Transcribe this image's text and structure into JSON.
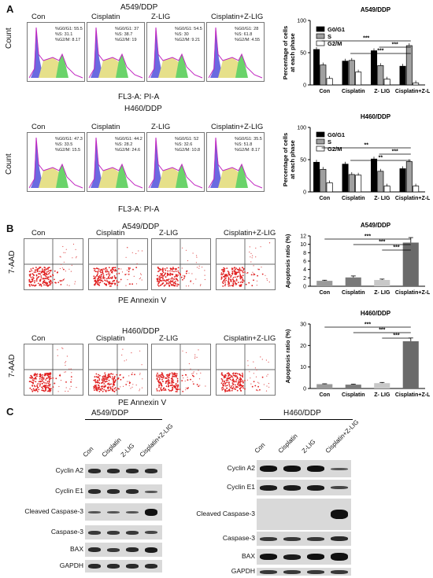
{
  "panels": {
    "a": "A",
    "b": "B",
    "c": "C"
  },
  "flow": {
    "a549_title": "A549/DDP",
    "h460_title": "H460/DDP",
    "count_label": "Count",
    "x_label": "FL3-A: PI-A",
    "groups": [
      "Con",
      "Cisplatin",
      "Z-LIG",
      "Cisplatin+Z-LIG"
    ],
    "a549_stats": [
      [
        "%G0/G1: 55.5",
        "%S: 31.1",
        "%G2/M: 8.17"
      ],
      [
        "%G0/G1: 37",
        "%S: 38.7",
        "%G2/M: 19"
      ],
      [
        "%G0/G1: 54.5",
        "%S: 30",
        "%G2/M: 9.21"
      ],
      [
        "%G0/G1: 28",
        "%S: 61.8",
        "%G2/M: 4.55"
      ]
    ],
    "h460_stats": [
      [
        "%G0/G1: 47.3",
        "%S: 33.5",
        "%G2/M: 15.5"
      ],
      [
        "%G0/G1: 44.2",
        "%S: 28.2",
        "%G2/M: 24.6"
      ],
      [
        "%G0/G1: 52",
        "%S: 32.6",
        "%G2/M: 10.8"
      ],
      [
        "%G0/G1: 35.5",
        "%S: 51.8",
        "%G2/M: 8.17"
      ]
    ]
  },
  "apoptosis": {
    "a549_title": "A549/DDP",
    "h460_title": "H460/DDP",
    "y_label": "7-AAD",
    "x_label": "PE Annexin V",
    "groups": [
      "Con",
      "Cisplatin",
      "Z-LIG",
      "Cisplatin+Z-LIG"
    ]
  },
  "chart_data": [
    {
      "type": "bar",
      "title": "A549/DDP",
      "categories": [
        "Con",
        "Cisplatin",
        "Z- LIG",
        "Cisplatin+Z-LIG"
      ],
      "ylabel": "Percentage of cells at each phase",
      "ylim": [
        0,
        100
      ],
      "yticks": [
        0,
        50,
        100
      ],
      "series": [
        {
          "name": "G0/G1",
          "values": [
            55,
            37,
            53,
            29
          ],
          "color": "#000000"
        },
        {
          "name": "S",
          "values": [
            31,
            38,
            30,
            61
          ],
          "color": "#a0a0a0"
        },
        {
          "name": "G2/M",
          "values": [
            10,
            20,
            9,
            3
          ],
          "color": "#ffffff"
        }
      ],
      "significance": [
        "***",
        "***",
        "***"
      ]
    },
    {
      "type": "bar",
      "title": "H460/DDP",
      "categories": [
        "Con",
        "Cisplatin",
        "Z- LIG",
        "Cisplatin+Z-LIG"
      ],
      "ylabel": "Percentage of cells at each phase",
      "ylim": [
        0,
        100
      ],
      "yticks": [
        0,
        50,
        100
      ],
      "series": [
        {
          "name": "G0/G1",
          "values": [
            46,
            43,
            51,
            36
          ],
          "color": "#000000"
        },
        {
          "name": "S",
          "values": [
            35,
            27,
            32,
            47
          ],
          "color": "#a0a0a0"
        },
        {
          "name": "G2/M",
          "values": [
            14,
            26,
            9,
            9
          ],
          "color": "#ffffff"
        }
      ],
      "significance": [
        "**",
        "***",
        "**"
      ]
    },
    {
      "type": "bar",
      "title": "A549/DDP",
      "categories": [
        "Con",
        "Cisplatin",
        "Z- LIG",
        "Cisplatin+Z-LIG"
      ],
      "ylabel": "Apoptosis ratio (%)",
      "ylim": [
        0,
        12
      ],
      "yticks": [
        0,
        2,
        4,
        6,
        8,
        10,
        12
      ],
      "values": [
        1.3,
        2.1,
        1.5,
        10.4
      ],
      "errors": [
        0.15,
        0.35,
        0.2,
        1.2
      ],
      "colors": [
        "#9a9a9a",
        "#7a7a7a",
        "#c8c8c8",
        "#6a6a6a"
      ],
      "significance": [
        "***",
        "***",
        "***"
      ]
    },
    {
      "type": "bar",
      "title": "H460/DDP",
      "categories": [
        "Con",
        "Cisplatin",
        "Z- LIG",
        "Cisplatin+Z-LIG"
      ],
      "ylabel": "Apoptosis ratio (%)",
      "ylim": [
        0,
        30
      ],
      "yticks": [
        0,
        10,
        20,
        30
      ],
      "values": [
        2.0,
        1.8,
        2.5,
        22.0
      ],
      "errors": [
        0.2,
        0.2,
        0.3,
        1.5
      ],
      "colors": [
        "#9a9a9a",
        "#7a7a7a",
        "#c8c8c8",
        "#6a6a6a"
      ],
      "significance": [
        "***",
        "***",
        "***"
      ]
    }
  ],
  "western": {
    "a549_title": "A549/DDP",
    "h460_title": "H460/DDP",
    "lanes": [
      "Con",
      "Cisplatin",
      "Z-LIG",
      "Cisplatin+Z-LIG"
    ],
    "a549_labels": [
      "Cyclin A2",
      "Cyclin E1",
      "Cleaved Caspase-3",
      "Caspase-3",
      "BAX",
      "GAPDH"
    ],
    "h460_labels": [
      "Cyclin A2",
      "Cyclin E1",
      "Cleaved Caspase-3",
      "Caspase-3",
      "BAX",
      "GAPDH"
    ]
  }
}
